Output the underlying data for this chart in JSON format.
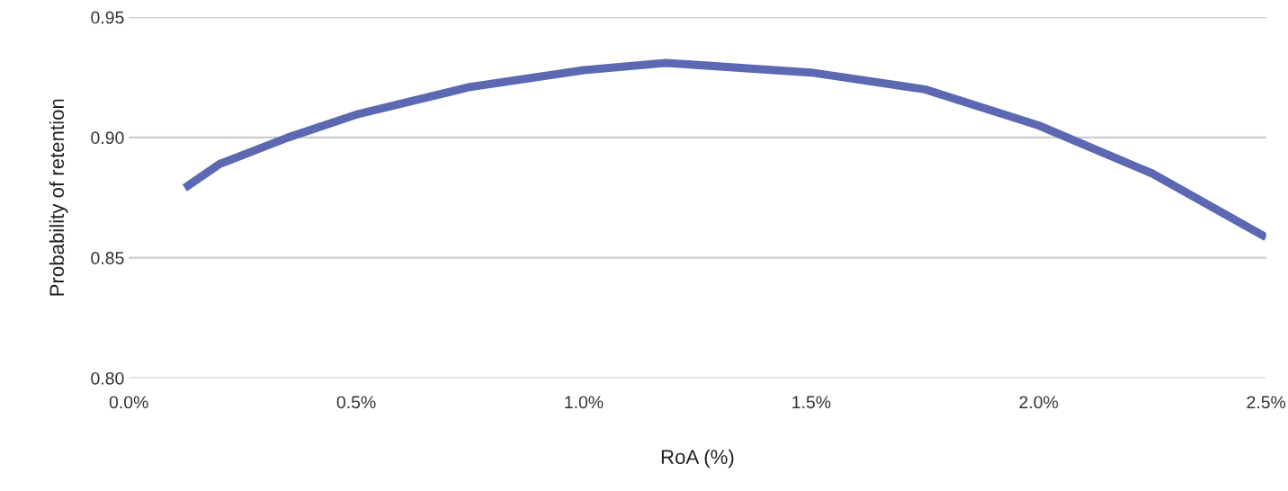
{
  "chart_data": {
    "type": "line",
    "xlabel": "RoA (%)",
    "ylabel": "Probability of retention",
    "x": [
      0.123,
      0.2,
      0.35,
      0.5,
      0.75,
      1.0,
      1.18,
      1.5,
      1.75,
      2.0,
      2.25,
      2.5
    ],
    "series": [
      {
        "color": "#5c68b2",
        "values": [
          0.879,
          0.889,
          0.9,
          0.9095,
          0.921,
          0.928,
          0.931,
          0.927,
          0.92,
          0.905,
          0.885,
          0.8585
        ]
      }
    ],
    "xlim": [
      0,
      2.5
    ],
    "ylim": [
      0.8,
      0.95
    ],
    "xticks": [
      {
        "value": 0,
        "label": "0.0%"
      },
      {
        "value": 0.5,
        "label": "0.5%"
      },
      {
        "value": 1.0,
        "label": "1.0%"
      },
      {
        "value": 1.5,
        "label": "1.5%"
      },
      {
        "value": 2.0,
        "label": "2.0%"
      },
      {
        "value": 2.5,
        "label": "2.5%"
      }
    ],
    "yticks": [
      {
        "value": 0.8,
        "label": "0.80"
      },
      {
        "value": 0.85,
        "label": "0.85"
      },
      {
        "value": 0.9,
        "label": "0.90"
      },
      {
        "value": 0.95,
        "label": "0.95"
      }
    ],
    "grid": "y",
    "legend": false,
    "marker": "none",
    "line_style": "solid"
  }
}
